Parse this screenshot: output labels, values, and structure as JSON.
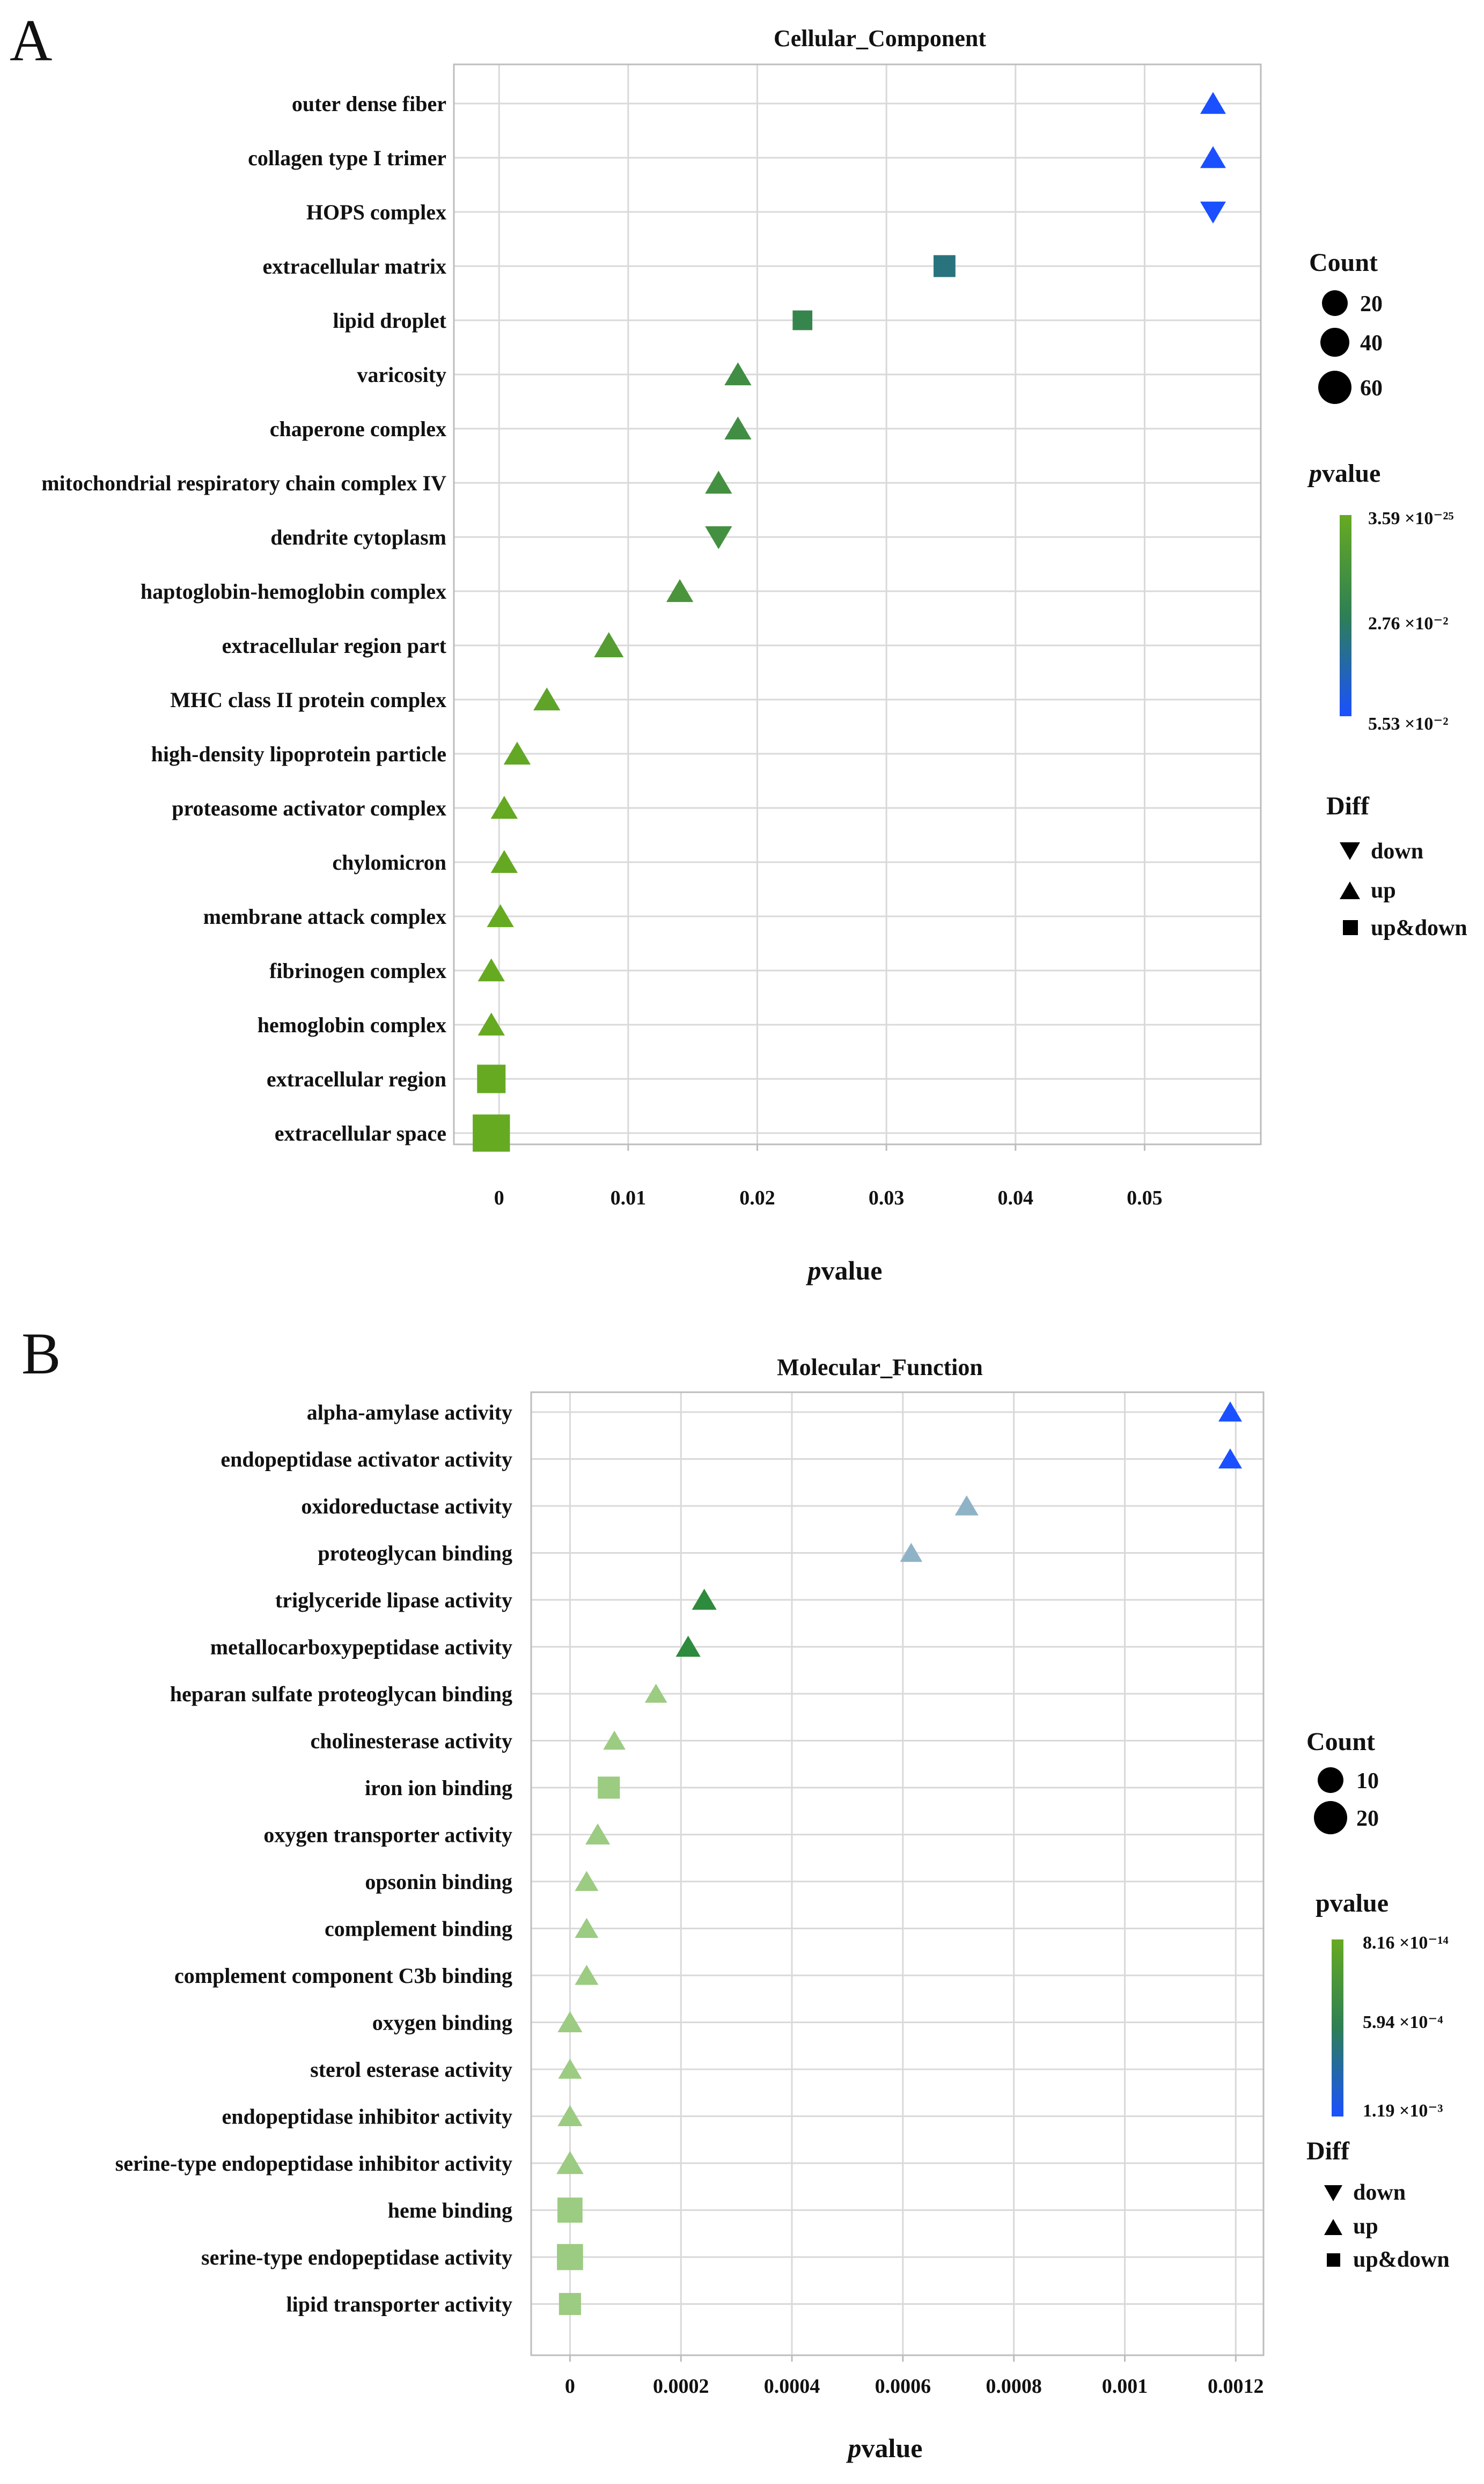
{
  "panels": [
    {
      "letter": "A",
      "chart_data": {
        "type": "scatter",
        "title": "Cellular_Component",
        "xlabel_italic": "p",
        "xlabel_rest": "value",
        "xlim": [
          -0.0035,
          0.059
        ],
        "xticks": [
          0,
          0.01,
          0.02,
          0.03,
          0.04,
          0.05
        ],
        "xtick_labels": [
          "0",
          "0.01",
          "0.02",
          "0.03",
          "0.04",
          "0.05"
        ],
        "grid": true,
        "legend_position": "right",
        "colorscale": [
          "#66aa22",
          "#2e7f55",
          "#1a50ff"
        ],
        "size_legend": {
          "title": "Count",
          "values": [
            "20",
            "40",
            "60"
          ]
        },
        "color_legend": {
          "title_italic": "p",
          "title_rest": "value",
          "max_label": "3.59 ×10⁻²⁵",
          "mid_label": "2.76 ×10⁻²",
          "min_label": "5.53 ×10⁻²"
        },
        "shape_legend": {
          "title": "Diff",
          "items": [
            "down",
            "up",
            "up&down"
          ]
        },
        "points": [
          {
            "term": "outer dense fiber",
            "p": 0.0553,
            "shape": "up",
            "size": 1.0
          },
          {
            "term": "collagen type I trimer",
            "p": 0.0553,
            "shape": "up",
            "size": 1.0
          },
          {
            "term": "HOPS complex",
            "p": 0.0553,
            "shape": "down",
            "size": 1.0
          },
          {
            "term": "extracellular matrix",
            "p": 0.0345,
            "shape": "square",
            "size": 1.0
          },
          {
            "term": "lipid droplet",
            "p": 0.0235,
            "shape": "square",
            "size": 0.9
          },
          {
            "term": "varicosity",
            "p": 0.0185,
            "shape": "up",
            "size": 1.05
          },
          {
            "term": "chaperone complex",
            "p": 0.0185,
            "shape": "up",
            "size": 1.05
          },
          {
            "term": "mitochondrial respiratory chain complex IV",
            "p": 0.017,
            "shape": "up",
            "size": 1.05
          },
          {
            "term": "dendrite cytoplasm",
            "p": 0.017,
            "shape": "down",
            "size": 1.05
          },
          {
            "term": "haptoglobin-hemoglobin complex",
            "p": 0.014,
            "shape": "up",
            "size": 1.05
          },
          {
            "term": "extracellular region part",
            "p": 0.0085,
            "shape": "up",
            "size": 1.15
          },
          {
            "term": "MHC class II protein complex",
            "p": 0.0037,
            "shape": "up",
            "size": 1.05
          },
          {
            "term": "high-density lipoprotein particle",
            "p": 0.0014,
            "shape": "up",
            "size": 1.05
          },
          {
            "term": "proteasome activator complex",
            "p": 0.0004,
            "shape": "up",
            "size": 1.05
          },
          {
            "term": "chylomicron",
            "p": 0.0004,
            "shape": "up",
            "size": 1.05
          },
          {
            "term": "membrane attack complex",
            "p": 0.0001,
            "shape": "up",
            "size": 1.05
          },
          {
            "term": "fibrinogen complex",
            "p": -0.0006,
            "shape": "up",
            "size": 1.05
          },
          {
            "term": "hemoglobin complex",
            "p": -0.0006,
            "shape": "up",
            "size": 1.05
          },
          {
            "term": "extracellular region",
            "p": -0.0006,
            "shape": "square",
            "size": 1.3
          },
          {
            "term": "extracellular space",
            "p": -0.0006,
            "shape": "square",
            "size": 1.7
          }
        ]
      }
    },
    {
      "letter": "B",
      "chart_data": {
        "type": "scatter",
        "title": "Molecular_Function",
        "xlabel_italic": "p",
        "xlabel_rest": "value",
        "xlim": [
          -7e-05,
          0.00125
        ],
        "xticks": [
          0,
          0.0002,
          0.0004,
          0.0006,
          0.0008,
          0.001,
          0.0012
        ],
        "xtick_labels": [
          "0",
          "0.0002",
          "0.0004",
          "0.0006",
          "0.0008",
          "0.001",
          "0.0012"
        ],
        "grid": true,
        "legend_position": "right",
        "colorscale": [
          "#66aa22",
          "#2e7f55",
          "#1a50ff"
        ],
        "size_legend": {
          "title": "Count",
          "values": [
            "10",
            "20"
          ]
        },
        "color_legend": {
          "title_italic": "",
          "title_rest": "pvalue",
          "max_label": "8.16 ×10⁻¹⁴",
          "mid_label": "5.94 ×10⁻⁴",
          "min_label": "1.19 ×10⁻³"
        },
        "shape_legend": {
          "title": "Diff",
          "items": [
            "down",
            "up",
            "up&down"
          ]
        },
        "points": [
          {
            "term": "alpha-amylase activity",
            "p": 0.00119,
            "shape": "up",
            "size": 1.0,
            "color": "#1a50ff"
          },
          {
            "term": "endopeptidase activator activity",
            "p": 0.00119,
            "shape": "up",
            "size": 1.0,
            "color": "#1a50ff"
          },
          {
            "term": "oxidoreductase activity",
            "p": 0.000715,
            "shape": "up",
            "size": 1.0,
            "color": "#8fb3c6"
          },
          {
            "term": "proteoglycan binding",
            "p": 0.000615,
            "shape": "up",
            "size": 0.95,
            "color": "#8fb3c6"
          },
          {
            "term": "triglyceride lipase activity",
            "p": 0.000242,
            "shape": "up",
            "size": 1.05,
            "color": "#2e8a3c"
          },
          {
            "term": "metallocarboxypeptidase activity",
            "p": 0.000213,
            "shape": "up",
            "size": 1.05,
            "color": "#2e8a3c"
          },
          {
            "term": "heparan sulfate proteoglycan binding",
            "p": 0.000155,
            "shape": "up",
            "size": 0.95,
            "color": "#9ccb82"
          },
          {
            "term": "cholinesterase activity",
            "p": 8e-05,
            "shape": "up",
            "size": 0.95,
            "color": "#9ccb82"
          },
          {
            "term": "iron ion binding",
            "p": 7e-05,
            "shape": "square",
            "size": 1.1,
            "color": "#9ccb82"
          },
          {
            "term": "oxygen transporter activity",
            "p": 5e-05,
            "shape": "up",
            "size": 1.05,
            "color": "#9ccb82"
          },
          {
            "term": "opsonin binding",
            "p": 3e-05,
            "shape": "up",
            "size": 1.0,
            "color": "#9ccb82"
          },
          {
            "term": "complement binding",
            "p": 3e-05,
            "shape": "up",
            "size": 1.0,
            "color": "#9ccb82"
          },
          {
            "term": "complement component C3b binding",
            "p": 3e-05,
            "shape": "up",
            "size": 1.0,
            "color": "#9ccb82"
          },
          {
            "term": "oxygen binding",
            "p": 0.0,
            "shape": "up",
            "size": 1.05,
            "color": "#9ccb82"
          },
          {
            "term": "sterol esterase activity",
            "p": 0.0,
            "shape": "up",
            "size": 1.0,
            "color": "#9ccb82"
          },
          {
            "term": "endopeptidase inhibitor activity",
            "p": 0.0,
            "shape": "up",
            "size": 1.05,
            "color": "#9ccb82"
          },
          {
            "term": "serine-type endopeptidase inhibitor activity",
            "p": 0.0,
            "shape": "up",
            "size": 1.15,
            "color": "#9ccb82"
          },
          {
            "term": "heme binding",
            "p": 0.0,
            "shape": "square",
            "size": 1.25,
            "color": "#9ccb82"
          },
          {
            "term": "serine-type endopeptidase activity",
            "p": 0.0,
            "shape": "square",
            "size": 1.3,
            "color": "#9ccb82"
          },
          {
            "term": "lipid transporter activity",
            "p": 0.0,
            "shape": "square",
            "size": 1.1,
            "color": "#9ccb82"
          }
        ]
      }
    }
  ]
}
